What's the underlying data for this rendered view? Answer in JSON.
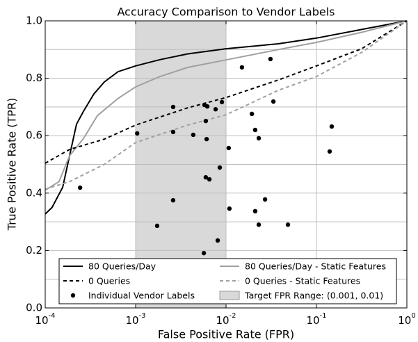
{
  "chart_data": {
    "type": "line",
    "title": "Accuracy Comparison to Vendor Labels",
    "x_label": "False Positive Rate (FPR)",
    "y_label": "True Positive Rate (TPR)",
    "log_x": true,
    "grid": true,
    "legend": "lower center",
    "xlim": [
      0.0001,
      1
    ],
    "ylim": [
      0,
      1
    ],
    "xticks": [
      {
        "value": 0.0001,
        "label": "10",
        "exp": "-4"
      },
      {
        "value": 0.001,
        "label": "10",
        "exp": "-3"
      },
      {
        "value": 0.01,
        "label": "10",
        "exp": "-2"
      },
      {
        "value": 0.1,
        "label": "10",
        "exp": "-1"
      },
      {
        "value": 1,
        "label": "10",
        "exp": "0"
      }
    ],
    "yticks": [
      {
        "value": 0,
        "label": "0.0"
      },
      {
        "value": 0.2,
        "label": "0.2"
      },
      {
        "value": 0.4,
        "label": "0.4"
      },
      {
        "value": 0.6,
        "label": "0.6"
      },
      {
        "value": 0.8,
        "label": "0.8"
      },
      {
        "value": 1,
        "label": "1.0"
      }
    ],
    "ygrid_minor": [
      0.1,
      0.3,
      0.5,
      0.7,
      0.9
    ],
    "span": {
      "name": "Target FPR Range: (0.001, 0.01)",
      "x": [
        0.001,
        0.01
      ],
      "color": "#d9d9d9"
    },
    "series": [
      {
        "name": "80 Queries/Day",
        "kind": "line",
        "dashed": false,
        "color": "#000000",
        "x": [
          0.0001,
          0.000119,
          0.000156,
          0.000186,
          0.000222,
          0.000265,
          0.000345,
          0.00045,
          0.00064,
          0.001,
          0.00186,
          0.00378,
          0.01,
          0.0378,
          0.1,
          0.316,
          1
        ],
        "values": [
          0.327,
          0.35,
          0.42,
          0.53,
          0.64,
          0.685,
          0.745,
          0.787,
          0.823,
          0.843,
          0.865,
          0.885,
          0.903,
          0.92,
          0.94,
          0.97,
          1.0
        ]
      },
      {
        "name": "80 Queries/Day - Static Features",
        "kind": "line",
        "dashed": false,
        "color": "#a0a0a0",
        "x": [
          0.0001,
          0.000142,
          0.000186,
          0.000265,
          0.000378,
          0.00064,
          0.001,
          0.00186,
          0.00378,
          0.01,
          0.0378,
          0.1,
          0.316,
          1
        ],
        "values": [
          0.41,
          0.44,
          0.53,
          0.59,
          0.67,
          0.73,
          0.77,
          0.806,
          0.838,
          0.864,
          0.9,
          0.925,
          0.96,
          1.0
        ]
      },
      {
        "name": "0 Queries",
        "kind": "line",
        "dashed": true,
        "color": "#000000",
        "x": [
          0.0001,
          0.000186,
          0.00045,
          0.001,
          0.00378,
          0.01,
          0.0378,
          0.1,
          0.316,
          1
        ],
        "values": [
          0.504,
          0.552,
          0.588,
          0.637,
          0.697,
          0.733,
          0.794,
          0.843,
          0.903,
          1.0
        ]
      },
      {
        "name": "0 Queries - Static Features",
        "kind": "line",
        "dashed": true,
        "color": "#a0a0a0",
        "x": [
          0.0001,
          0.000186,
          0.00045,
          0.001,
          0.00378,
          0.01,
          0.0378,
          0.1,
          0.316,
          1
        ],
        "values": [
          0.414,
          0.44,
          0.5,
          0.576,
          0.637,
          0.673,
          0.758,
          0.806,
          0.89,
          1.0
        ]
      },
      {
        "name": "Individual Vendor Labels",
        "kind": "scatter",
        "dashed": false,
        "color": "#000000",
        "x": [
          0.000243,
          0.00104,
          0.00173,
          0.0026,
          0.0026,
          0.0026,
          0.00434,
          0.00578,
          0.00597,
          0.0061,
          0.0062,
          0.00597,
          0.00654,
          0.00767,
          0.009,
          0.00853,
          0.00809,
          0.00568,
          0.0107,
          0.0109,
          0.015,
          0.0193,
          0.021,
          0.023,
          0.021,
          0.023,
          0.027,
          0.031,
          0.0334,
          0.0484,
          0.1476,
          0.14
        ],
        "values": [
          0.419,
          0.608,
          0.286,
          0.7,
          0.613,
          0.375,
          0.603,
          0.707,
          0.651,
          0.588,
          0.702,
          0.455,
          0.448,
          0.692,
          0.717,
          0.489,
          0.235,
          0.191,
          0.557,
          0.346,
          0.838,
          0.676,
          0.62,
          0.591,
          0.337,
          0.29,
          0.378,
          0.867,
          0.719,
          0.29,
          0.632,
          0.545
        ]
      }
    ]
  }
}
